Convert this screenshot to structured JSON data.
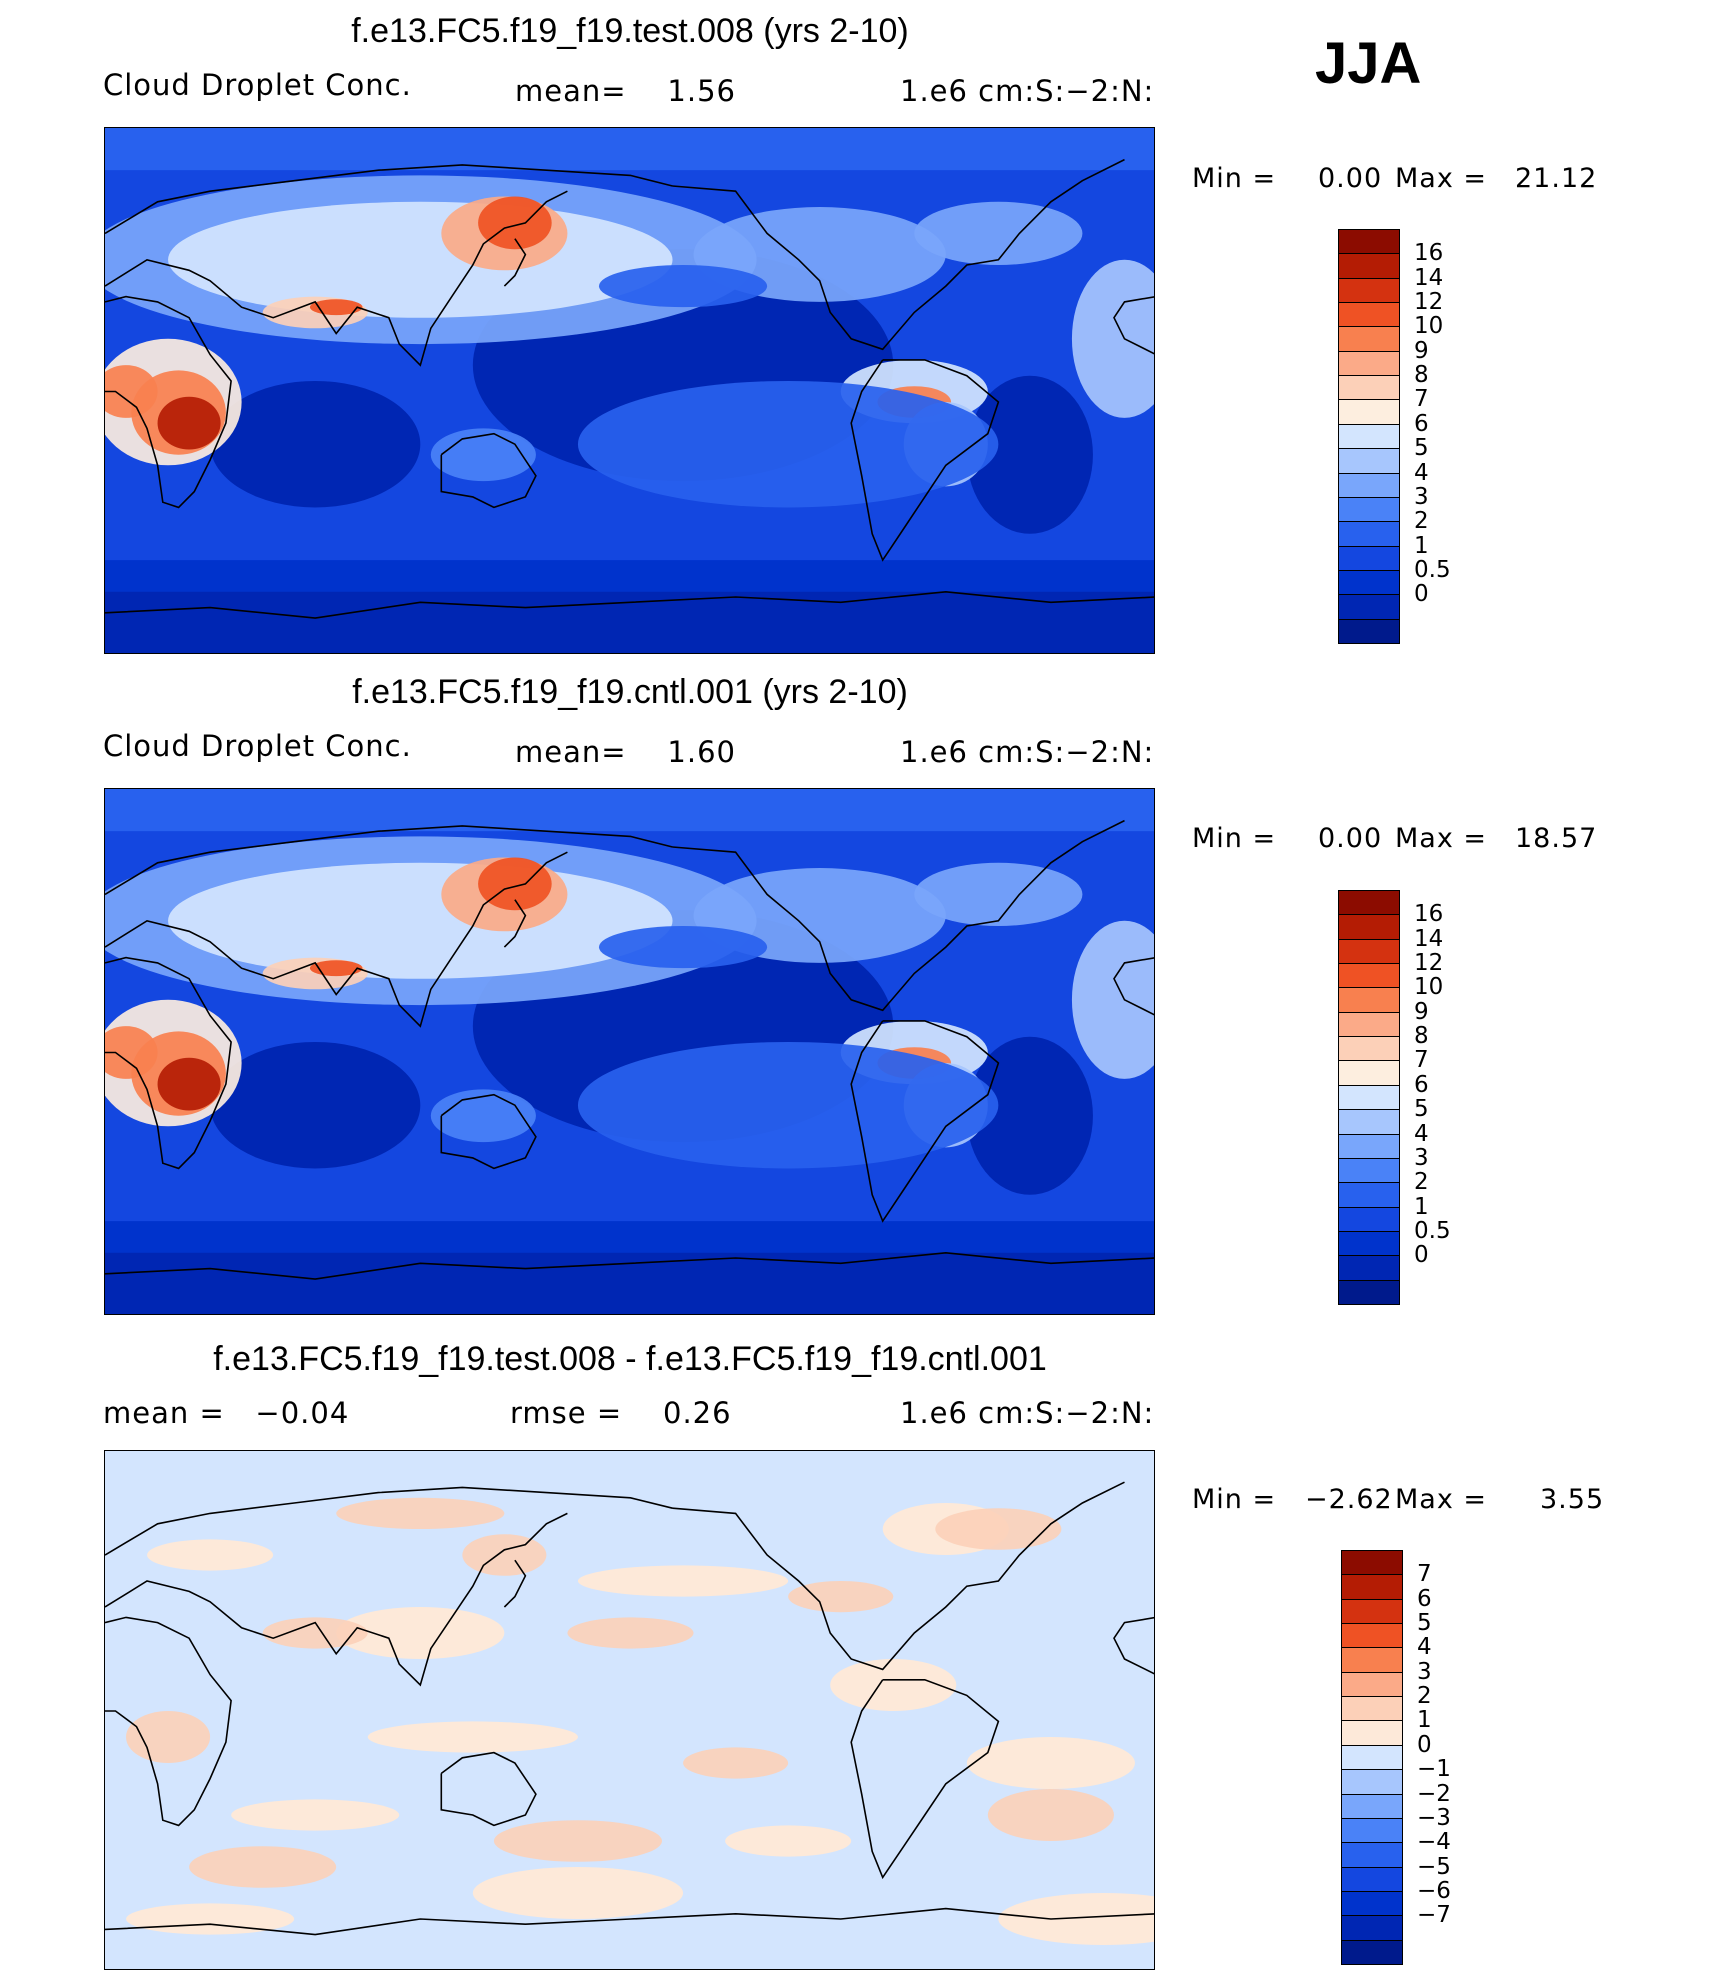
{
  "season": "JJA",
  "palettes": {
    "abs": [
      "#001a8c",
      "#0026b3",
      "#0033cc",
      "#1447e0",
      "#2861ee",
      "#4a82f7",
      "#79a6fb",
      "#a7c6fd",
      "#d3e5fe",
      "#fdeedf",
      "#fcd0b8",
      "#fbaa88",
      "#f8804f",
      "#ef5224",
      "#d43210",
      "#b41c04",
      "#8c0c00"
    ],
    "diff": [
      "#001a8c",
      "#0026b3",
      "#0033cc",
      "#1447e0",
      "#2861ee",
      "#4a82f7",
      "#79a6fb",
      "#a7c6fd",
      "#d3e5fe",
      "#fde9d9",
      "#fcd0b8",
      "#fbaa88",
      "#f8804f",
      "#ef5224",
      "#d43210",
      "#b41c04",
      "#8c0c00"
    ]
  },
  "panels": [
    {
      "title": "f.e13.FC5.f19_f19.test.008 (yrs 2-10)",
      "field_label": "Cloud Droplet Conc.",
      "stat1": "mean=    1.56",
      "units": "1.e6 cm:S:−2:N:",
      "min_label": "Min =",
      "min_value": "0.00",
      "max_label": "Max =",
      "max_value": "21.12",
      "kind": "abs",
      "colorbar_levels": [
        "16",
        "14",
        "12",
        "10",
        "9",
        "8",
        "7",
        "6",
        "5",
        "4",
        "3",
        "2",
        "1",
        "0.5",
        "0"
      ]
    },
    {
      "title": "f.e13.FC5.f19_f19.cntl.001 (yrs 2-10)",
      "field_label": "Cloud Droplet Conc.",
      "stat1": "mean=    1.60",
      "units": "1.e6 cm:S:−2:N:",
      "min_label": "Min =",
      "min_value": "0.00",
      "max_label": "Max =",
      "max_value": "18.57",
      "kind": "abs",
      "colorbar_levels": [
        "16",
        "14",
        "12",
        "10",
        "9",
        "8",
        "7",
        "6",
        "5",
        "4",
        "3",
        "2",
        "1",
        "0.5",
        "0"
      ]
    },
    {
      "title": "f.e13.FC5.f19_f19.test.008 - f.e13.FC5.f19_f19.cntl.001",
      "field_label": "mean =   −0.04",
      "stat1": "rmse =    0.26",
      "units": "1.e6 cm:S:−2:N:",
      "min_label": "Min =",
      "min_value": "−2.62",
      "max_label": "Max =",
      "max_value": "3.55",
      "kind": "diff",
      "colorbar_levels": [
        "7",
        "6",
        "5",
        "4",
        "3",
        "2",
        "1",
        "0",
        "−1",
        "−2",
        "−3",
        "−4",
        "−5",
        "−6",
        "−7"
      ]
    }
  ]
}
